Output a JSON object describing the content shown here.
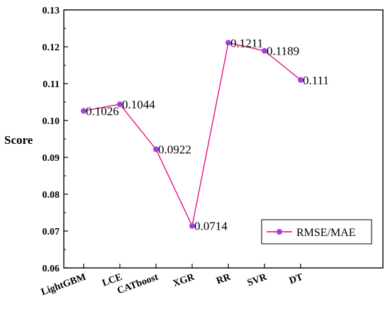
{
  "chart_data": {
    "type": "line",
    "title": "",
    "xlabel": "",
    "ylabel": "Score",
    "categories": [
      "LightGBM",
      "LCE",
      "CATboost",
      "XGR",
      "RR",
      "SVR",
      "DT"
    ],
    "ylim": [
      0.06,
      0.13
    ],
    "yticks": [
      "0.06",
      "0.07",
      "0.08",
      "0.09",
      "0.10",
      "0.11",
      "0.12",
      "0.13"
    ],
    "series": [
      {
        "name": "RMSE/MAE",
        "values": [
          0.1026,
          0.1044,
          0.0922,
          0.0714,
          0.1211,
          0.1189,
          0.111
        ],
        "labels": [
          "0.1026",
          "0.1044",
          "0.0922",
          "0.0714",
          "0.1211",
          "0.1189",
          "0.111"
        ],
        "line_color": "#e6007e",
        "marker_color": "#a040e0"
      }
    ],
    "legend_position": "bottom-right",
    "grid": false
  }
}
